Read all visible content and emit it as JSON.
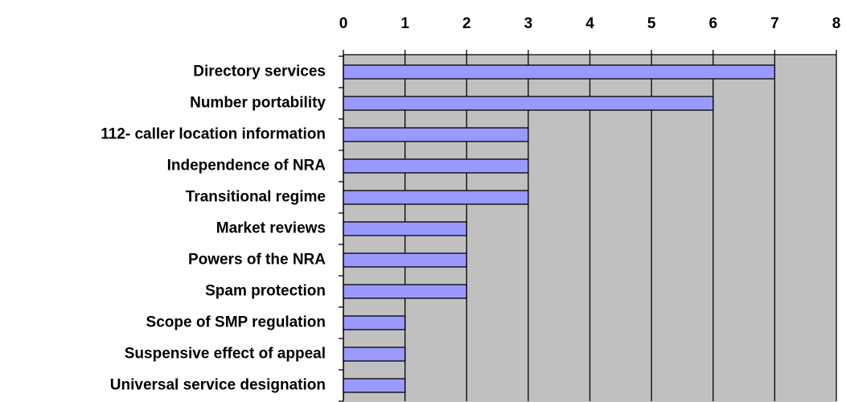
{
  "chart_data": {
    "type": "bar",
    "orientation": "horizontal",
    "categories": [
      "Directory services",
      "Number portability",
      "112- caller location information",
      "Independence of NRA",
      "Transitional regime",
      "Market reviews",
      "Powers of the NRA",
      "Spam protection",
      "Scope of SMP regulation",
      "Suspensive effect of appeal",
      "Universal service designation"
    ],
    "values": [
      7,
      6,
      3,
      3,
      3,
      2,
      2,
      2,
      1,
      1,
      1
    ],
    "color": "#9999ff",
    "xlim": [
      0,
      8
    ],
    "xticks": [
      0,
      1,
      2,
      3,
      4,
      5,
      6,
      7,
      8
    ],
    "grid": true
  }
}
